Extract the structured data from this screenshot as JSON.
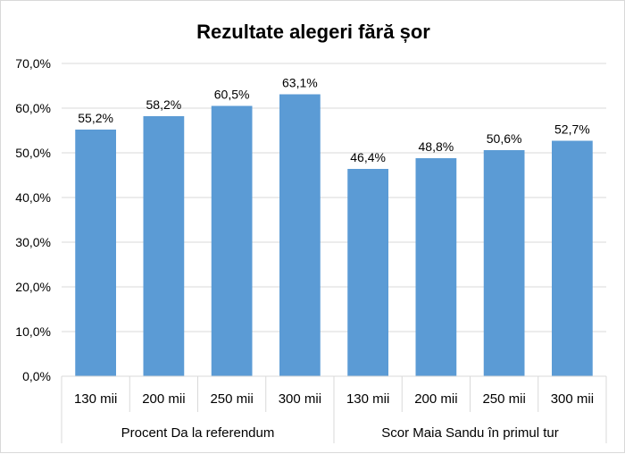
{
  "chart_data": {
    "type": "bar",
    "title": "Rezultate alegeri fără șor",
    "xlabel": "",
    "ylabel": "",
    "ylim": [
      0,
      70
    ],
    "y_ticks": [
      "0,0%",
      "10,0%",
      "20,0%",
      "30,0%",
      "40,0%",
      "50,0%",
      "60,0%",
      "70,0%"
    ],
    "grid": true,
    "legend": "none",
    "groups": [
      {
        "label": "Procent Da la referendum",
        "categories": [
          "130 mii",
          "200 mii",
          "250 mii",
          "300 mii"
        ],
        "values": [
          55.2,
          58.2,
          60.5,
          63.1
        ],
        "data_labels": [
          "55,2%",
          "58,2%",
          "60,5%",
          "63,1%"
        ]
      },
      {
        "label": "Scor Maia Sandu în primul tur",
        "categories": [
          "130 mii",
          "200 mii",
          "250 mii",
          "300 mii"
        ],
        "values": [
          46.4,
          48.8,
          50.6,
          52.7
        ],
        "data_labels": [
          "46,4%",
          "48,8%",
          "50,6%",
          "52,7%"
        ]
      }
    ],
    "colors": {
      "bar": "#5b9bd5",
      "grid": "#d9d9d9",
      "text": "#000000"
    }
  }
}
